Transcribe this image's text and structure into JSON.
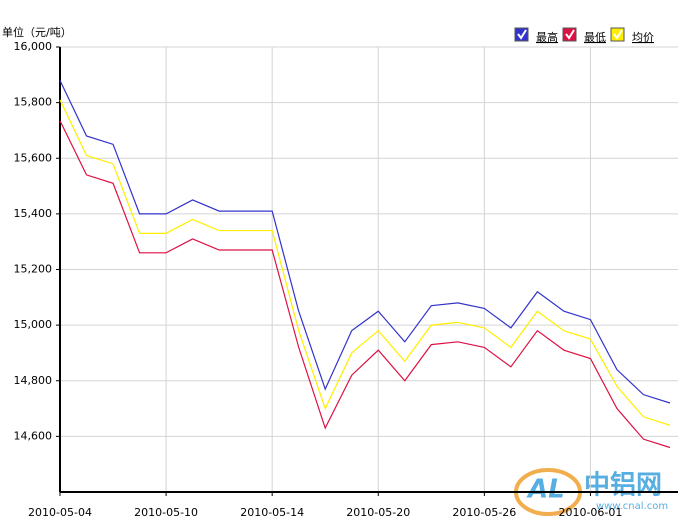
{
  "chart_data": {
    "type": "line",
    "y_axis_label": "单位（元/吨）",
    "categories": [
      "2010-05-04",
      null,
      null,
      null,
      "2010-05-10",
      null,
      null,
      null,
      "2010-05-14",
      null,
      null,
      null,
      "2010-05-20",
      null,
      null,
      null,
      "2010-05-26",
      null,
      null,
      null,
      "2010-06-01",
      null,
      null,
      null
    ],
    "series": [
      {
        "name": "最高",
        "color": "#3333cc",
        "values": [
          15880,
          15680,
          15650,
          15400,
          15400,
          15450,
          15410,
          15410,
          15410,
          15050,
          14770,
          14980,
          15050,
          14940,
          15070,
          15080,
          15060,
          14990,
          15120,
          15050,
          15020,
          14840,
          14750,
          14720
        ]
      },
      {
        "name": "最低",
        "color": "#dd1144",
        "values": [
          15735,
          15540,
          15510,
          15260,
          15260,
          15310,
          15270,
          15270,
          15270,
          14920,
          14630,
          14820,
          14910,
          14800,
          14930,
          14940,
          14920,
          14850,
          14980,
          14910,
          14880,
          14700,
          14590,
          14560
        ]
      },
      {
        "name": "均价",
        "color": "#ffee00",
        "values": [
          15810,
          15610,
          15580,
          15330,
          15330,
          15380,
          15340,
          15340,
          15340,
          14980,
          14700,
          14900,
          14980,
          14870,
          15000,
          15010,
          14990,
          14920,
          15050,
          14980,
          14950,
          14780,
          14670,
          14640
        ]
      }
    ],
    "ylim": [
      14400,
      16000
    ],
    "yticks": [
      {
        "value": 14600,
        "label": "14,600"
      },
      {
        "value": 14800,
        "label": "14,800"
      },
      {
        "value": 15000,
        "label": "15,000"
      },
      {
        "value": 15200,
        "label": "15,200"
      },
      {
        "value": 15400,
        "label": "15,400"
      },
      {
        "value": 15600,
        "label": "15,600"
      },
      {
        "value": 15800,
        "label": "15,800"
      },
      {
        "value": 16000,
        "label": "16,000"
      }
    ],
    "grid": true,
    "legend": "top-right"
  },
  "watermark": {
    "logo": "AL",
    "brand": "中铝网",
    "url": "www.cnal.com"
  }
}
